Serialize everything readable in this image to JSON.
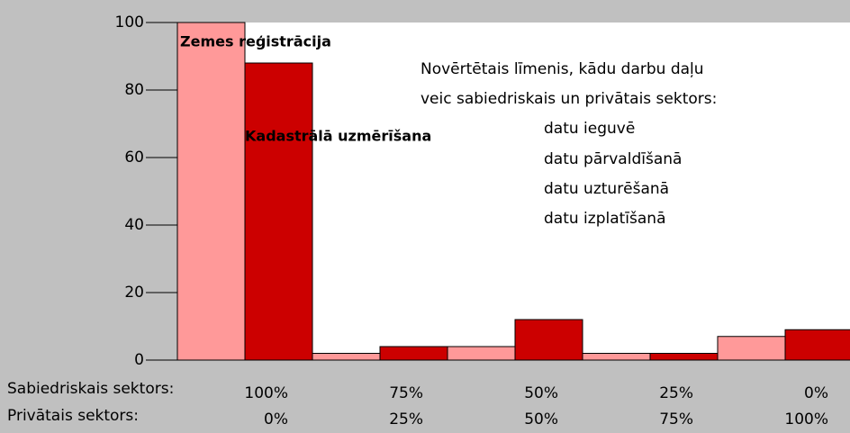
{
  "chart_data": {
    "type": "bar",
    "categories": [
      "100%",
      "75%",
      "50%",
      "25%",
      "0%"
    ],
    "secondary_categories": [
      "0%",
      "25%",
      "50%",
      "75%",
      "100%"
    ],
    "row_labels": [
      "Sabiedriskais sektors:",
      "Privātais sektors:"
    ],
    "series": [
      {
        "name": "Zemes reģistrācija",
        "color": "#ff9999",
        "values": [
          100,
          2,
          4,
          2,
          7
        ]
      },
      {
        "name": "Kadastrālā uzmērīšana",
        "color": "#cc0000",
        "values": [
          88,
          4,
          12,
          2,
          9
        ]
      }
    ],
    "annotations": [
      "Novērtētais līmenis, kādu darbu daļu",
      "veic sabiedriskais un privātais sektors:",
      "datu ieguvē",
      "datu pārvaldīšanā",
      "datu uzturēšanā",
      "datu izplatīšanā"
    ],
    "ylim": [
      0,
      100
    ],
    "yticks": [
      0,
      20,
      40,
      60,
      80,
      100
    ],
    "grid": false
  }
}
